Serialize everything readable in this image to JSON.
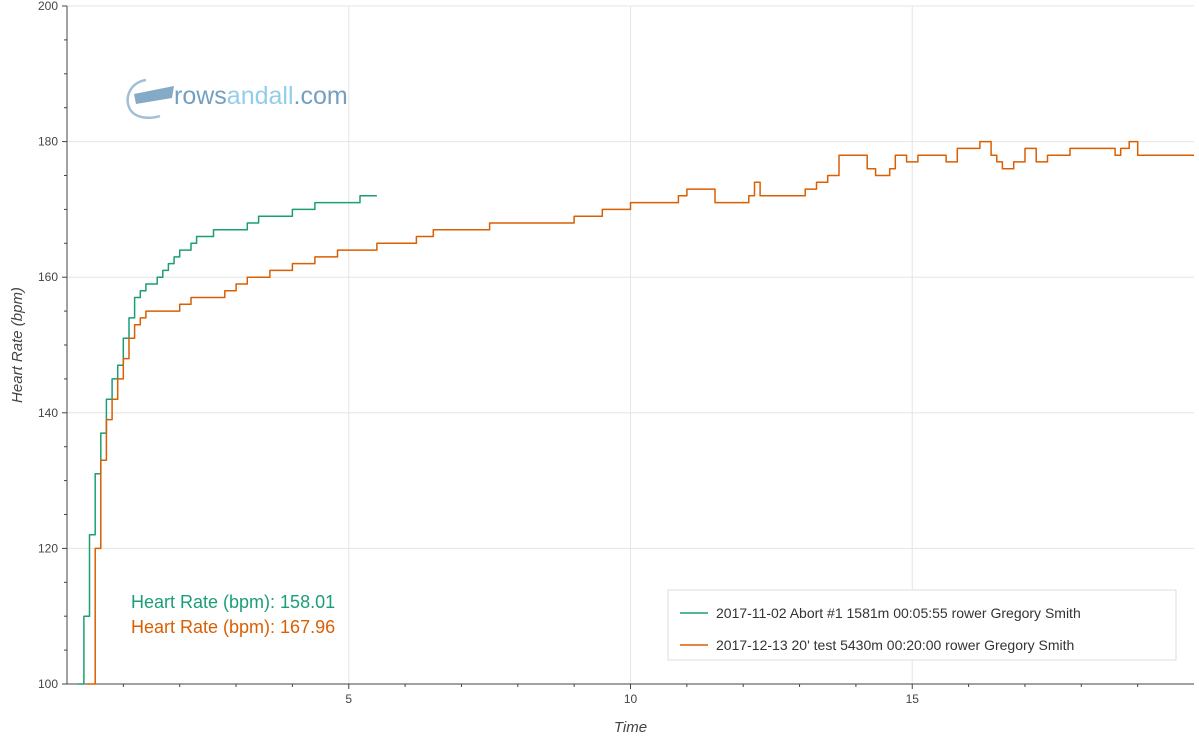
{
  "logo": {
    "part1": "rows",
    "part2": "andall",
    "part3": ".com"
  },
  "averages": [
    {
      "label": "Heart Rate (bpm): 158.01",
      "color": "#1b9e77"
    },
    {
      "label": "Heart Rate (bpm): 167.96",
      "color": "#d95f02"
    }
  ],
  "chart_data": {
    "type": "line",
    "title": "",
    "xlabel": "Time",
    "ylabel": "Heart Rate (bpm)",
    "xlim": [
      0,
      20
    ],
    "ylim": [
      100,
      200
    ],
    "x_ticks": [
      "5",
      "10",
      "15"
    ],
    "y_ticks": [
      "100",
      "120",
      "140",
      "160",
      "180",
      "200"
    ],
    "grid": true,
    "legend_position": "bottom-right",
    "series": [
      {
        "name": "2017-11-02 Abort #1 1581m 00:05:55 rower Gregory Smith",
        "color": "#1b9e77",
        "x": [
          0.2,
          0.3,
          0.4,
          0.5,
          0.6,
          0.7,
          0.8,
          0.9,
          1.0,
          1.1,
          1.2,
          1.3,
          1.4,
          1.5,
          1.6,
          1.7,
          1.8,
          1.9,
          2.0,
          2.1,
          2.2,
          2.3,
          2.4,
          2.5,
          2.6,
          2.8,
          3.0,
          3.2,
          3.4,
          3.6,
          3.8,
          4.0,
          4.2,
          4.4,
          4.6,
          4.8,
          5.0,
          5.2,
          5.5
        ],
        "y": [
          100,
          110,
          122,
          131,
          137,
          142,
          145,
          147,
          151,
          154,
          157,
          158,
          159,
          159,
          160,
          161,
          162,
          163,
          164,
          164,
          165,
          166,
          166,
          166,
          167,
          167,
          167,
          168,
          169,
          169,
          169,
          170,
          170,
          171,
          171,
          171,
          171,
          172,
          172
        ]
      },
      {
        "name": "2017-12-13 20' test 5430m 00:20:00 rower Gregory Smith",
        "color": "#d95f02",
        "x": [
          0.35,
          0.5,
          0.6,
          0.7,
          0.8,
          0.9,
          1.0,
          1.1,
          1.2,
          1.3,
          1.4,
          1.5,
          1.6,
          1.7,
          1.8,
          2.0,
          2.2,
          2.4,
          2.6,
          2.8,
          3.0,
          3.2,
          3.4,
          3.6,
          3.8,
          4.0,
          4.2,
          4.4,
          4.6,
          4.8,
          5.0,
          5.5,
          6.0,
          6.2,
          6.5,
          7.0,
          7.5,
          8.0,
          8.5,
          9.0,
          9.5,
          10.0,
          10.4,
          10.7,
          10.85,
          11.0,
          11.2,
          11.5,
          11.8,
          12.0,
          12.1,
          12.2,
          12.3,
          12.6,
          12.9,
          13.1,
          13.3,
          13.5,
          13.7,
          13.9,
          14.0,
          14.2,
          14.35,
          14.5,
          14.6,
          14.7,
          14.9,
          15.1,
          15.4,
          15.6,
          15.8,
          16.0,
          16.2,
          16.3,
          16.4,
          16.5,
          16.6,
          16.8,
          17.0,
          17.2,
          17.4,
          17.8,
          18.2,
          18.5,
          18.6,
          18.7,
          18.85,
          19.0,
          19.5,
          20.0
        ],
        "y": [
          100,
          120,
          133,
          139,
          142,
          145,
          148,
          151,
          153,
          154,
          155,
          155,
          155,
          155,
          155,
          156,
          157,
          157,
          157,
          158,
          159,
          160,
          160,
          161,
          161,
          162,
          162,
          163,
          163,
          164,
          164,
          165,
          165,
          166,
          167,
          167,
          168,
          168,
          168,
          169,
          170,
          171,
          171,
          171,
          172,
          173,
          173,
          171,
          171,
          171,
          172,
          174,
          172,
          172,
          172,
          173,
          174,
          175,
          178,
          178,
          178,
          176,
          175,
          175,
          176,
          178,
          177,
          178,
          178,
          177,
          179,
          179,
          180,
          180,
          178,
          177,
          176,
          177,
          179,
          177,
          178,
          179,
          179,
          179,
          178,
          179,
          180,
          178,
          178,
          178
        ]
      }
    ]
  }
}
